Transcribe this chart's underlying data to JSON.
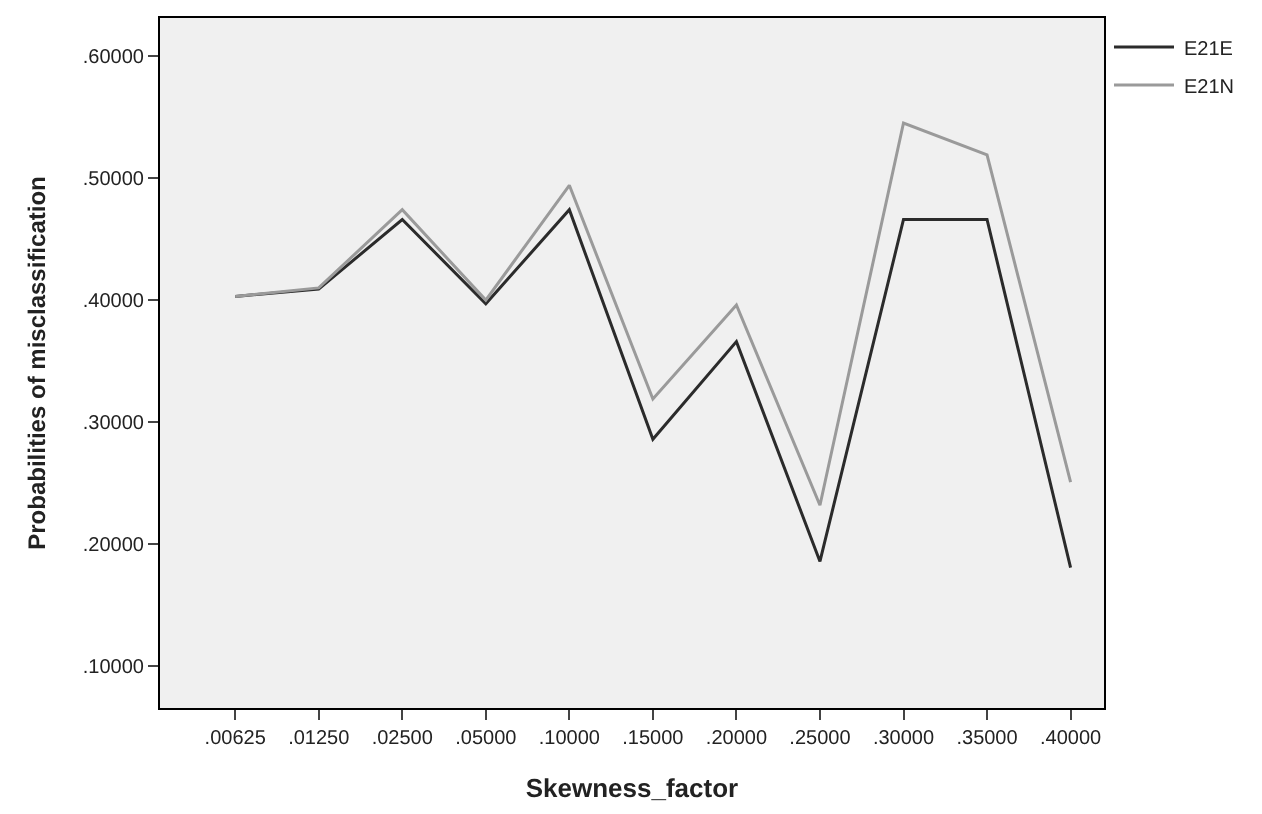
{
  "chart_data": {
    "type": "line",
    "xlabel": "Skewness_factor",
    "ylabel": "Probabilities of misclassification",
    "categories": [
      ".00625",
      ".01250",
      ".02500",
      ".05000",
      ".10000",
      ".15000",
      ".20000",
      ".25000",
      ".30000",
      ".35000",
      ".40000"
    ],
    "series": [
      {
        "name": "E21E",
        "color": "#2b2b2b",
        "values": [
          0.403,
          0.409,
          0.466,
          0.397,
          0.474,
          0.286,
          0.366,
          0.186,
          0.466,
          0.466,
          0.181
        ]
      },
      {
        "name": "E21N",
        "color": "#9a9a9a",
        "values": [
          0.403,
          0.41,
          0.474,
          0.4,
          0.494,
          0.319,
          0.396,
          0.232,
          0.545,
          0.519,
          0.251
        ]
      }
    ],
    "ylim": [
      0.066,
      0.631
    ],
    "yticks": [
      {
        "value": 0.1,
        "label": ".10000"
      },
      {
        "value": 0.2,
        "label": ".20000"
      },
      {
        "value": 0.3,
        "label": ".30000"
      },
      {
        "value": 0.4,
        "label": ".40000"
      },
      {
        "value": 0.5,
        "label": ".50000"
      },
      {
        "value": 0.6,
        "label": ".60000"
      }
    ],
    "legend": "top right",
    "grid": false,
    "marker": "none",
    "line_style": "solid"
  }
}
